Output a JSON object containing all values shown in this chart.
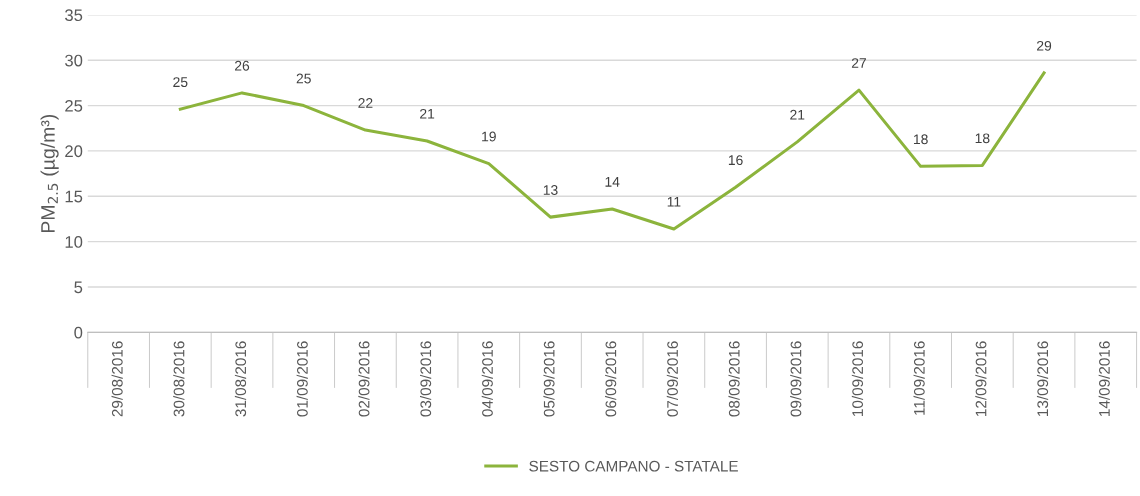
{
  "chart_data": {
    "type": "line",
    "ylabel": "PM$_{2.5}$ (µg/m³)",
    "categories": [
      "29/08/2016",
      "30/08/2016",
      "31/08/2016",
      "01/09/2016",
      "02/09/2016",
      "03/09/2016",
      "04/09/2016",
      "05/09/2016",
      "06/09/2016",
      "07/09/2016",
      "08/09/2016",
      "09/09/2016",
      "10/09/2016",
      "11/09/2016",
      "12/09/2016",
      "13/09/2016",
      "14/09/2016"
    ],
    "series": [
      {
        "name": "SESTO CAMPANO - STATALE",
        "color": "#8cb43c",
        "values": [
          null,
          24.6,
          26.4,
          25.0,
          22.3,
          21.1,
          18.6,
          12.7,
          13.6,
          11.4,
          16.0,
          21.0,
          26.7,
          18.3,
          18.4,
          28.6,
          null
        ],
        "value_labels": [
          null,
          "25",
          "26",
          "25",
          "22",
          "21",
          "19",
          "13",
          "14",
          "11",
          "16",
          "21",
          "27",
          "18",
          "18",
          "29",
          null
        ]
      }
    ],
    "ylim": [
      0,
      35
    ],
    "yticks": [
      0,
      5,
      10,
      15,
      20,
      25,
      30,
      35
    ],
    "grid": "y",
    "legend": "bottom",
    "marker": "none",
    "line_style": "solid"
  }
}
